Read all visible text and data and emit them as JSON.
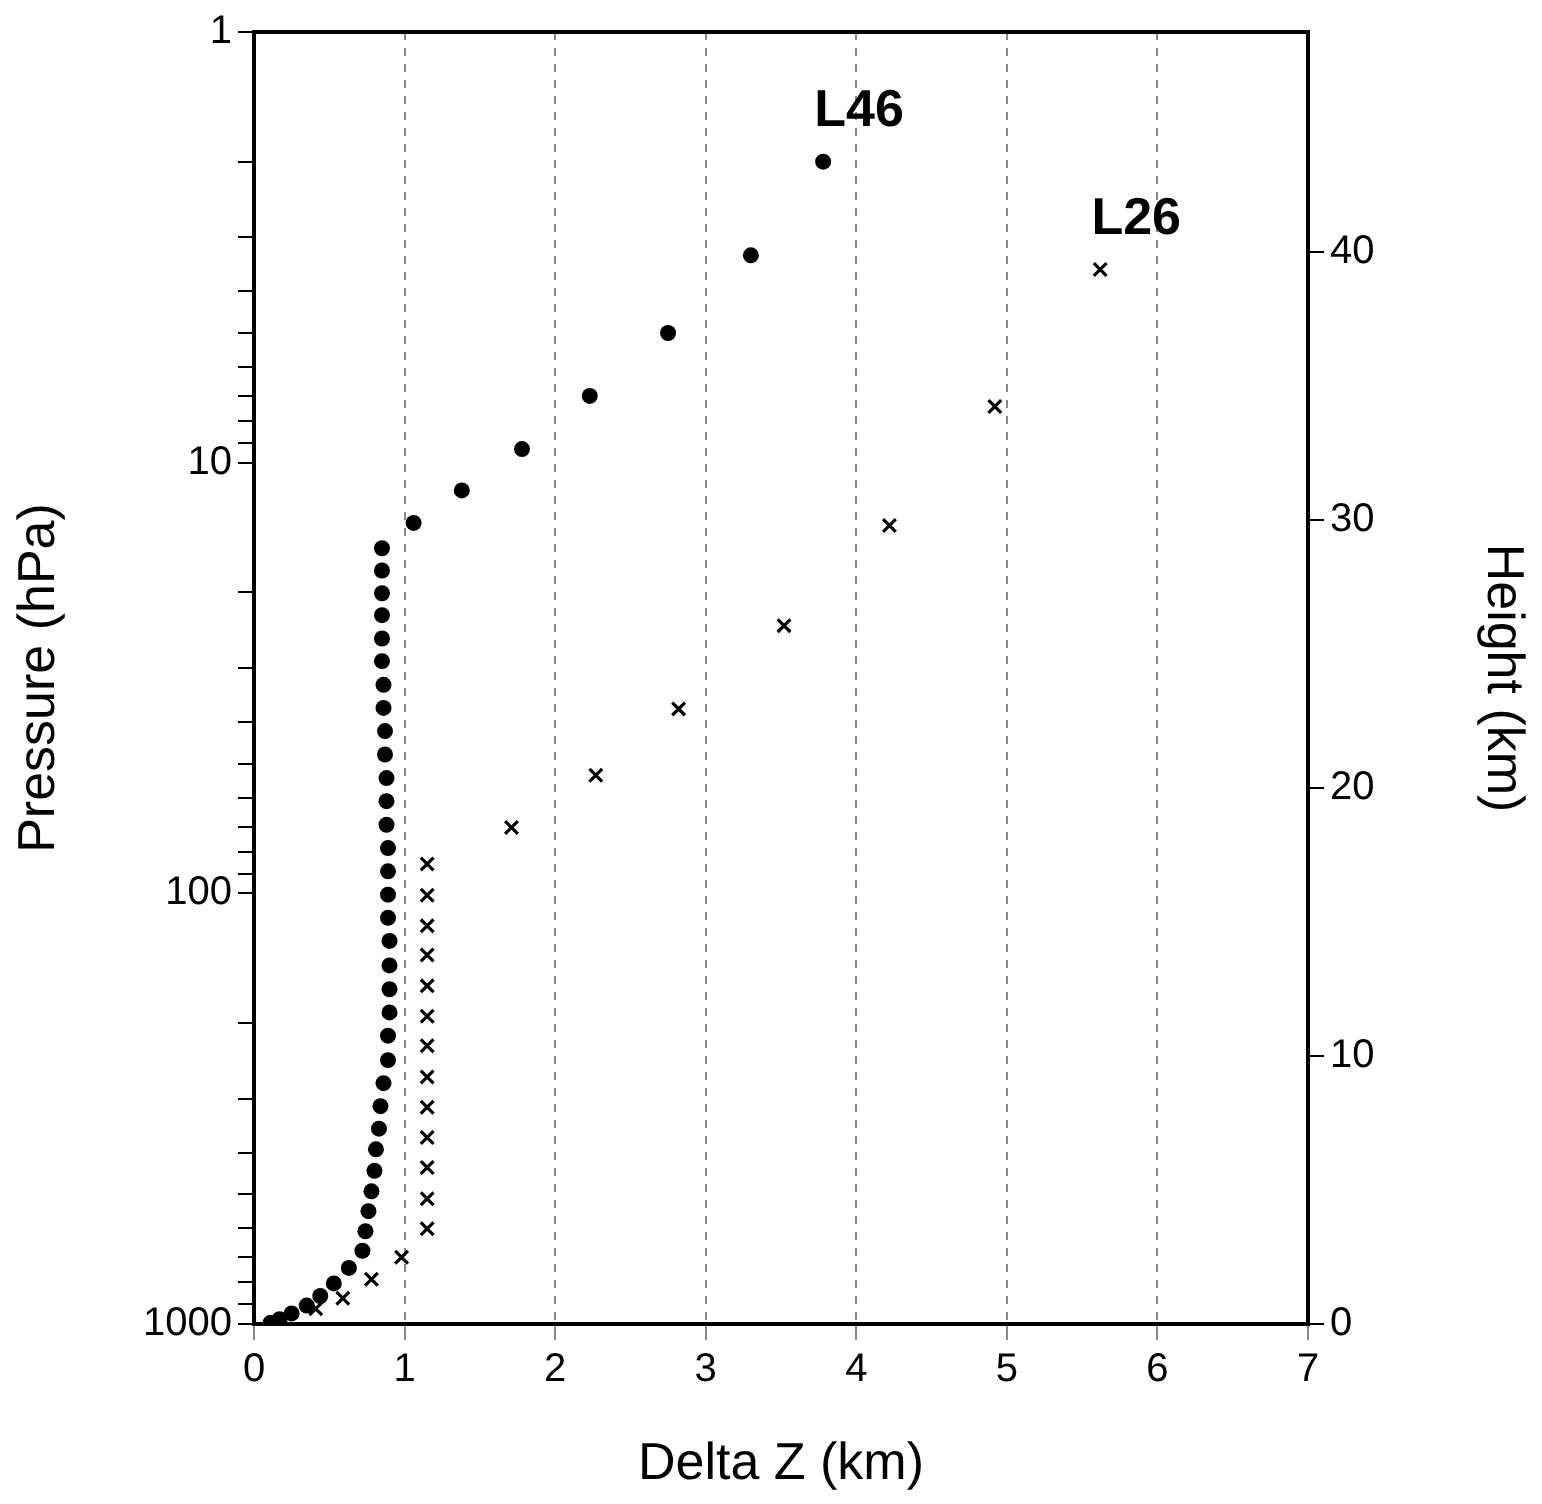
{
  "chart_data": {
    "type": "scatter",
    "xlabel": "Delta Z (km)",
    "ylabel": "Pressure (hPa)",
    "y2label": "Height (km)",
    "xlim": [
      0,
      7
    ],
    "xticks": [
      0,
      1,
      2,
      3,
      4,
      5,
      6,
      7
    ],
    "ylim": [
      1000,
      1
    ],
    "log": "y",
    "yticks": [
      1,
      {
        "value": 2,
        "label": null
      },
      {
        "value": 3,
        "label": null
      },
      {
        "value": 4,
        "label": null
      },
      {
        "value": 5,
        "label": null
      },
      {
        "value": 6,
        "label": null
      },
      {
        "value": 7,
        "label": null
      },
      {
        "value": 8,
        "label": null
      },
      {
        "value": 9,
        "label": null
      },
      10,
      {
        "value": 20,
        "label": null
      },
      {
        "value": 30,
        "label": null
      },
      {
        "value": 40,
        "label": null
      },
      {
        "value": 50,
        "label": null
      },
      {
        "value": 60,
        "label": null
      },
      {
        "value": 70,
        "label": null
      },
      {
        "value": 80,
        "label": null
      },
      {
        "value": 90,
        "label": null
      },
      100,
      {
        "value": 200,
        "label": null
      },
      {
        "value": 300,
        "label": null
      },
      {
        "value": 400,
        "label": null
      },
      {
        "value": 500,
        "label": null
      },
      {
        "value": 600,
        "label": null
      },
      {
        "value": 700,
        "label": null
      },
      {
        "value": 800,
        "label": null
      },
      {
        "value": 900,
        "label": null
      },
      1000
    ],
    "y2lim": [
      0,
      48.2
    ],
    "y2ticks": [
      0,
      10,
      20,
      30,
      40
    ],
    "grid": "x",
    "legend": false,
    "series": [
      {
        "name": "L46",
        "color": "#000000",
        "marker": "circle",
        "x": [
          3.78,
          3.3,
          2.75,
          2.23,
          1.78,
          1.38,
          1.06,
          0.85,
          0.85,
          0.85,
          0.85,
          0.85,
          0.85,
          0.86,
          0.86,
          0.87,
          0.87,
          0.88,
          0.88,
          0.88,
          0.89,
          0.89,
          0.89,
          0.89,
          0.9,
          0.9,
          0.9,
          0.9,
          0.89,
          0.89,
          0.86,
          0.84,
          0.83,
          0.81,
          0.8,
          0.78,
          0.76,
          0.74,
          0.72,
          0.63,
          0.53,
          0.44,
          0.35,
          0.25,
          0.17,
          0.11
        ],
        "values": [
          2.0,
          3.3,
          5.0,
          7.0,
          9.3,
          11.6,
          13.8,
          15.8,
          17.8,
          20.1,
          22.6,
          25.6,
          28.9,
          32.8,
          37.1,
          42.0,
          47.6,
          54.0,
          61.1,
          69.3,
          78.5,
          88.9,
          100.7,
          114,
          129,
          147,
          167,
          189,
          214,
          244,
          276,
          312,
          352,
          393,
          441,
          492,
          547,
          609,
          676,
          741,
          805,
          861,
          906,
          945,
          975,
          994
        ]
      },
      {
        "name": "L26",
        "color": "#000000",
        "marker": "cross",
        "x": [
          5.62,
          4.92,
          4.22,
          3.52,
          2.82,
          2.27,
          1.71,
          1.15,
          1.15,
          1.15,
          1.15,
          1.15,
          1.15,
          1.15,
          1.15,
          1.15,
          1.15,
          1.15,
          1.15,
          1.15,
          0.98,
          0.78,
          0.59,
          0.41
        ],
        "values": [
          3.56,
          7.41,
          14.0,
          23.9,
          37.3,
          53.2,
          70.3,
          85.5,
          101,
          119,
          139,
          164,
          193,
          226,
          267,
          314,
          369,
          433,
          512,
          601,
          700,
          787,
          871,
          922
        ]
      }
    ]
  }
}
